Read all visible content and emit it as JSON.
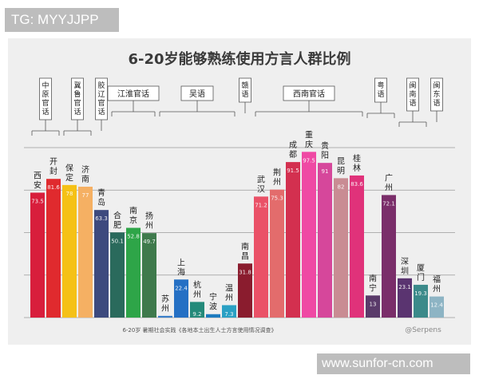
{
  "watermark_top": "TG: MYYJJPP",
  "watermark_bottom": "www.sunfor-cn.com",
  "chart_data": {
    "type": "bar",
    "title": "6-20岁能够熟练使用方言人群比例",
    "source": "6-20岁 暑期社会实践《各地本土出生人士方言使用情况调查》",
    "credit": "@Serpens",
    "ylim": [
      0,
      100
    ],
    "grid": true,
    "groups": [
      {
        "name": "中原官话",
        "categories": [
          "西安",
          "开封"
        ]
      },
      {
        "name": "冀鲁官话",
        "categories": [
          "保定",
          "济南"
        ]
      },
      {
        "name": "胶辽官话",
        "categories": [
          "青岛"
        ]
      },
      {
        "name": "江淮官话",
        "categories": [
          "合肥",
          "南京",
          "扬州"
        ]
      },
      {
        "name": "吴语",
        "categories": [
          "苏州",
          "上海",
          "杭州",
          "宁波",
          "温州"
        ]
      },
      {
        "name": "赣语",
        "categories": [
          "南昌"
        ]
      },
      {
        "name": "西南官话",
        "categories": [
          "武汉",
          "荆州",
          "成都",
          "重庆",
          "贵阳",
          "昆明",
          "桂林"
        ]
      },
      {
        "name": "粤语",
        "categories": [
          "南宁",
          "广州"
        ]
      },
      {
        "name": "闽南语",
        "categories": [
          "深圳",
          "厦门"
        ]
      },
      {
        "name": "闽东语",
        "categories": [
          "福州"
        ]
      }
    ],
    "bars": [
      {
        "city": "西安",
        "value": 73.5,
        "color": "#d81e3c"
      },
      {
        "city": "开封",
        "value": 81.6,
        "color": "#e02a2e"
      },
      {
        "city": "保定",
        "value": 78.0,
        "color": "#f5c116"
      },
      {
        "city": "济南",
        "value": 77.0,
        "color": "#f5b063"
      },
      {
        "city": "青岛",
        "value": 63.3,
        "color": "#3d4a7e"
      },
      {
        "city": "合肥",
        "value": 50.1,
        "color": "#2a6a5c"
      },
      {
        "city": "南京",
        "value": 52.8,
        "color": "#2ea548"
      },
      {
        "city": "扬州",
        "value": 49.7,
        "color": "#3f7a4c"
      },
      {
        "city": "苏州",
        "value": 1.0,
        "color": "#3a7fc9"
      },
      {
        "city": "上海",
        "value": 22.4,
        "color": "#2570c4"
      },
      {
        "city": "杭州",
        "value": 9.2,
        "color": "#248a7a"
      },
      {
        "city": "宁波",
        "value": 2.0,
        "color": "#1c7bbf"
      },
      {
        "city": "温州",
        "value": 7.3,
        "color": "#2aa0c4"
      },
      {
        "city": "南昌",
        "value": 31.8,
        "color": "#8a1c2e"
      },
      {
        "city": "武汉",
        "value": 71.2,
        "color": "#ea5167"
      },
      {
        "city": "荆州",
        "value": 75.3,
        "color": "#e36c6c"
      },
      {
        "city": "成都",
        "value": 91.5,
        "color": "#d3304f"
      },
      {
        "city": "重庆",
        "value": 97.5,
        "color": "#ef49a4"
      },
      {
        "city": "贵阳",
        "value": 91.0,
        "color": "#d6479b"
      },
      {
        "city": "昆明",
        "value": 82.0,
        "color": "#c98c93"
      },
      {
        "city": "桂林",
        "value": 83.6,
        "color": "#e0327a"
      },
      {
        "city": "南宁",
        "value": 13.0,
        "color": "#5a3b6a"
      },
      {
        "city": "广州",
        "value": 72.1,
        "color": "#7a2e6a"
      },
      {
        "city": "深圳",
        "value": 23.1,
        "color": "#5a3470"
      },
      {
        "city": "厦门",
        "value": 19.3,
        "color": "#3b8a8a"
      },
      {
        "city": "福州",
        "value": 12.4,
        "color": "#8db4c4"
      }
    ],
    "label_values": {
      "苏州": "",
      "宁波": ""
    }
  }
}
